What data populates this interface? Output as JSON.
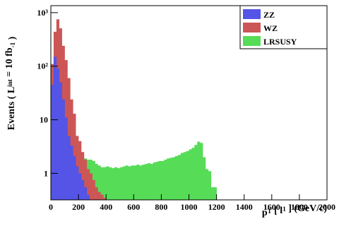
{
  "chart_data": {
    "type": "histogram",
    "x_label": [
      "p",
      "T",
      " [ l",
      "1",
      " ] (GeV/c)"
    ],
    "y_label": [
      "Events  ( L",
      "int",
      " = 10 fb",
      "-1",
      " )"
    ],
    "log_y": true,
    "legend": "upper right",
    "bins": [
      0,
      20,
      40,
      60,
      80,
      100,
      120,
      140,
      160,
      180,
      200,
      220,
      240,
      260,
      280,
      300,
      320,
      340,
      360,
      380,
      400,
      420,
      440,
      460,
      480,
      500,
      520,
      540,
      560,
      580,
      600,
      620,
      640,
      660,
      680,
      700,
      720,
      740,
      760,
      780,
      800,
      820,
      840,
      860,
      880,
      900,
      920,
      940,
      960,
      980,
      1000,
      1020,
      1040,
      1060,
      1080,
      1100,
      1120,
      1140,
      1160,
      1180,
      1200
    ],
    "series": [
      {
        "name": "ZZ",
        "color": "#5454e6",
        "values": [
          45,
          150,
          90,
          50,
          24,
          11,
          5,
          3.3,
          2.1,
          1.35,
          1,
          0.75,
          0.55,
          0.4,
          0,
          0,
          0,
          0,
          0,
          0,
          0,
          0,
          0,
          0,
          0,
          0,
          0,
          0,
          0,
          0,
          0,
          0,
          0,
          0,
          0,
          0,
          0,
          0,
          0,
          0,
          0,
          0,
          0,
          0,
          0,
          0,
          0,
          0,
          0,
          0,
          0,
          0,
          0,
          0,
          0,
          0,
          0,
          0,
          0,
          0
        ]
      },
      {
        "name": "WZ",
        "color": "#cc5656",
        "values": [
          110,
          440,
          750,
          510,
          240,
          130,
          60,
          24,
          13,
          5,
          4,
          2.5,
          1.8,
          1.2,
          1,
          0.75,
          0.55,
          0.45,
          0.4,
          0.35,
          0,
          0,
          0,
          0,
          0,
          0,
          0,
          0,
          0,
          0,
          0,
          0,
          0,
          0,
          0,
          0,
          0,
          0,
          0,
          0,
          0,
          0,
          0,
          0,
          0,
          0,
          0,
          0,
          0,
          0,
          0,
          0,
          0,
          0,
          0,
          0,
          0,
          0,
          0,
          0
        ]
      },
      {
        "name": "LRSUSY",
        "color": "#56dc56",
        "values": [
          0.6,
          1.0,
          1.3,
          1.5,
          1.6,
          1.7,
          1.7,
          1.8,
          1.8,
          1.8,
          1.8,
          1.8,
          1.9,
          1.8,
          1.8,
          1.7,
          1.5,
          1.4,
          1.3,
          1.3,
          1.35,
          1.3,
          1.25,
          1.3,
          1.25,
          1.3,
          1.35,
          1.4,
          1.35,
          1.4,
          1.4,
          1.45,
          1.4,
          1.45,
          1.5,
          1.55,
          1.5,
          1.6,
          1.65,
          1.7,
          1.7,
          1.8,
          1.9,
          1.95,
          2.0,
          2.1,
          2.2,
          2.4,
          2.5,
          2.6,
          2.8,
          3.0,
          3.4,
          3.9,
          3.7,
          2.0,
          1.2,
          1.1,
          0.55,
          0.55
        ]
      }
    ],
    "xlim": [
      0,
      2000
    ],
    "xticks": [
      0,
      200,
      400,
      600,
      800,
      1000,
      1200,
      1400,
      1600,
      1800,
      2000
    ],
    "ylim": [
      0.32,
      1350
    ],
    "yticks": [
      1,
      10,
      {
        "value": 100,
        "label": "10²"
      },
      {
        "value": 1000,
        "label": "10³"
      }
    ]
  }
}
